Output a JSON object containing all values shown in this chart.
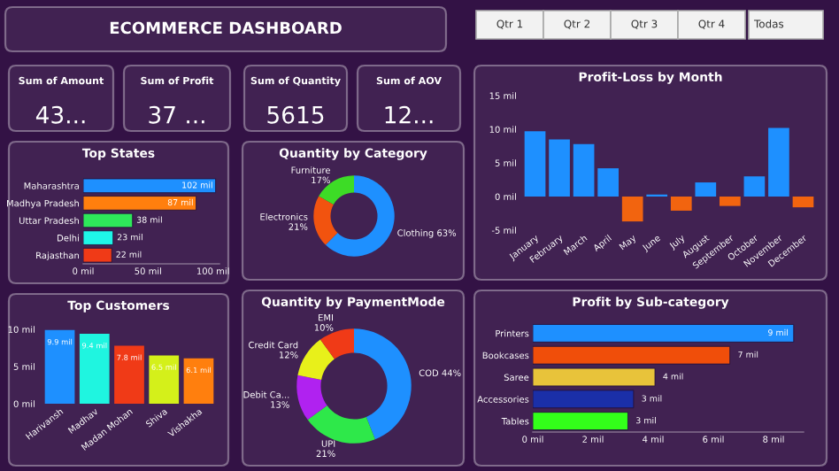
{
  "chart_data": [
    {
      "type": "other",
      "title": "ECOMMERCE DASHBOARD"
    },
    {
      "type": "other",
      "title": "Sum of Amount",
      "annotations": [
        "43..."
      ]
    },
    {
      "type": "other",
      "title": "Sum of Profit",
      "annotations": [
        "37 ..."
      ]
    },
    {
      "type": "other",
      "title": "Sum of Quantity",
      "annotations": [
        "5615"
      ]
    },
    {
      "type": "other",
      "title": "Sum of AOV",
      "annotations": [
        "12..."
      ]
    },
    {
      "type": "other",
      "annotations": [
        "Qtr 1",
        "Qtr 2",
        "Qtr 3",
        "Qtr 4",
        "Todas"
      ]
    },
    {
      "type": "bar",
      "orientation": "horizontal",
      "title": "Top States",
      "categories": [
        "Maharashtra",
        "Madhya Pradesh",
        "Uttar Pradesh",
        "Delhi",
        "Rajasthan"
      ],
      "values": [
        102,
        87,
        38,
        23,
        22
      ],
      "colors": [
        "#1e90ff",
        "#ff7f0e",
        "#2ee85a",
        "#1ff5e8",
        "#f03a17"
      ],
      "value_labels": [
        "102 mil",
        "87 mil",
        "38 mil",
        "23 mil",
        "22 mil"
      ],
      "xlim": [
        0,
        105
      ],
      "xticks": [
        {
          "value": 0,
          "label": "0 mil"
        },
        {
          "value": 50,
          "label": "50 mil"
        },
        {
          "value": 100,
          "label": "100 mil"
        }
      ]
    },
    {
      "type": "donut",
      "title": "Quantity by Category",
      "categories": [
        "Clothing",
        "Electronics",
        "Furniture"
      ],
      "values": [
        63,
        21,
        17
      ],
      "colors": [
        "#1e90ff",
        "#f2530f",
        "#3ddc26"
      ],
      "value_labels": [
        "63%",
        "21%",
        "17%"
      ]
    },
    {
      "type": "bar",
      "title": "Profit-Loss by Month",
      "categories": [
        "January",
        "February",
        "March",
        "April",
        "May",
        "June",
        "July",
        "August",
        "September",
        "October",
        "November",
        "December"
      ],
      "values": [
        9.7,
        8.5,
        7.8,
        4.2,
        -3.7,
        0.3,
        -2.1,
        2.1,
        -1.4,
        3.0,
        10.2,
        -1.6
      ],
      "colors": [
        "#1e90ff",
        "#1e90ff",
        "#1e90ff",
        "#1e90ff",
        "#f2640f",
        "#1e90ff",
        "#f2640f",
        "#1e90ff",
        "#f2640f",
        "#1e90ff",
        "#1e90ff",
        "#f2640f"
      ],
      "ylim": [
        -5,
        15
      ],
      "yticks": [
        {
          "value": -5,
          "label": "-5 mil"
        },
        {
          "value": 0,
          "label": "0 mil"
        },
        {
          "value": 5,
          "label": "5 mil"
        },
        {
          "value": 10,
          "label": "10 mil"
        },
        {
          "value": 15,
          "label": "15 mil"
        }
      ]
    },
    {
      "type": "bar",
      "title": "Top Customers",
      "categories": [
        "Harivansh",
        "Madhav",
        "Madan Mohan",
        "Shiva",
        "Vishakha"
      ],
      "values": [
        9.9,
        9.4,
        7.8,
        6.5,
        6.1
      ],
      "colors": [
        "#1e90ff",
        "#1ff5e0",
        "#f03a17",
        "#d4f01a",
        "#ff7f0e"
      ],
      "value_labels": [
        "9.9 mil",
        "9.4 mil",
        "7.8 mil",
        "6.5 mil",
        "6.1 mil"
      ],
      "ylim": [
        0,
        10
      ],
      "yticks": [
        {
          "value": 0,
          "label": "0 mil"
        },
        {
          "value": 5,
          "label": "5 mil"
        },
        {
          "value": 10,
          "label": "10 mil"
        }
      ]
    },
    {
      "type": "donut",
      "title": "Quantity by PaymentMode",
      "categories": [
        "COD",
        "UPI",
        "Debit Ca...",
        "Credit Card",
        "EMI"
      ],
      "values": [
        44,
        21,
        13,
        12,
        10
      ],
      "colors": [
        "#1e90ff",
        "#2ee84a",
        "#b022f0",
        "#e8f01a",
        "#f03a17"
      ],
      "value_labels": [
        "44%",
        "21%",
        "13%",
        "12%",
        "10%"
      ]
    },
    {
      "type": "bar",
      "orientation": "horizontal",
      "title": "Profit by Sub-category",
      "categories": [
        "Printers",
        "Bookcases",
        "Saree",
        "Accessories",
        "Tables"
      ],
      "values": [
        8.67,
        6.55,
        4.06,
        3.35,
        3.16
      ],
      "colors": [
        "#1e90ff",
        "#f04e0a",
        "#e8c33a",
        "#1a2fa8",
        "#33ff1a"
      ],
      "value_labels": [
        "9 mil",
        "7 mil",
        "4 mil",
        "3 mil",
        "3 mil"
      ],
      "xlim": [
        0,
        9
      ],
      "xticks": [
        {
          "value": 0,
          "label": "0 mil"
        },
        {
          "value": 2,
          "label": "2 mil"
        },
        {
          "value": 4,
          "label": "4 mil"
        },
        {
          "value": 6,
          "label": "6 mil"
        },
        {
          "value": 8,
          "label": "8 mil"
        }
      ]
    }
  ]
}
